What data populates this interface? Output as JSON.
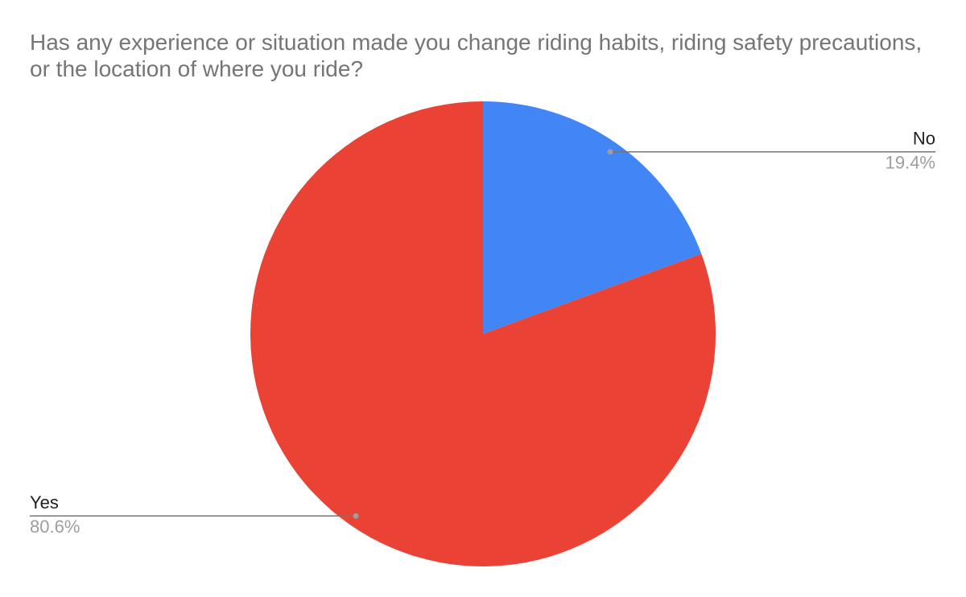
{
  "chart_data": {
    "type": "pie",
    "title": "Has any experience or situation made you change riding habits, riding safety precautions, or the location of where you ride?",
    "categories": [
      "No",
      "Yes"
    ],
    "values": [
      19.4,
      80.6
    ],
    "value_labels": [
      "19.4%",
      "80.6%"
    ],
    "colors": [
      "#4285f4",
      "#ea4335"
    ]
  }
}
